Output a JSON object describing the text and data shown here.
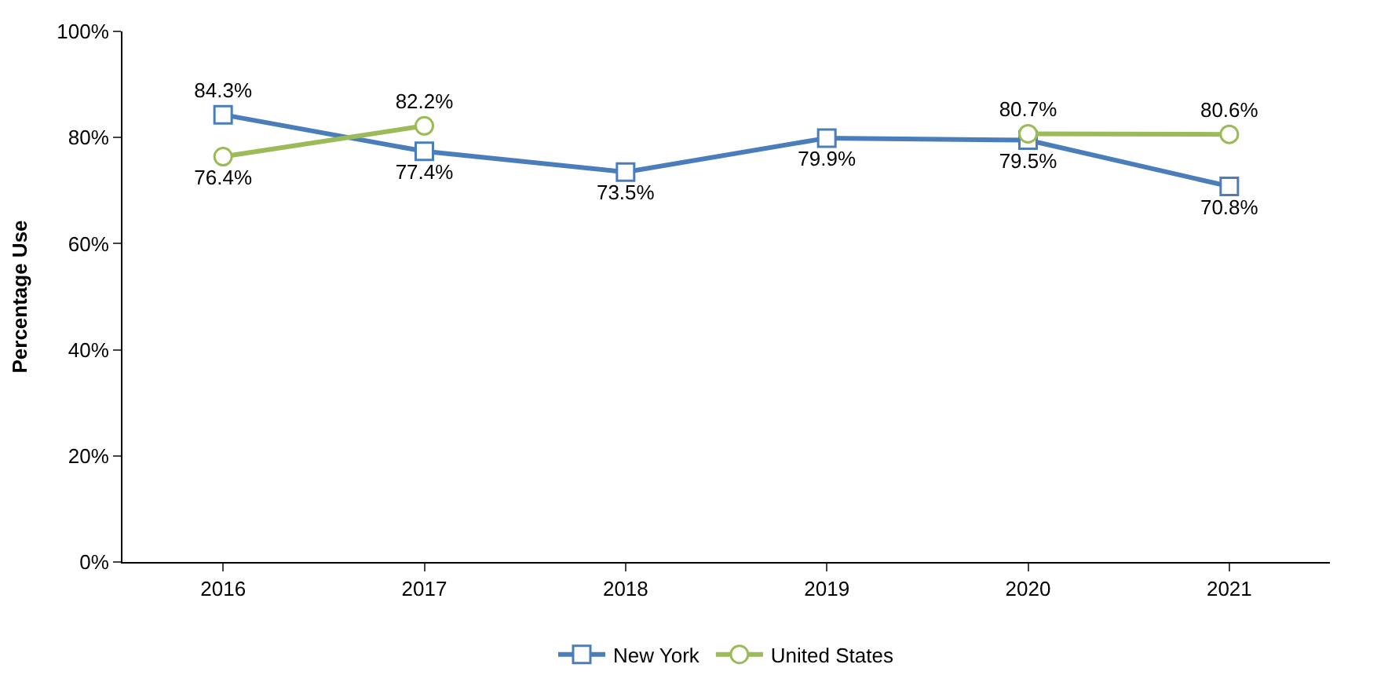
{
  "chart_data": {
    "type": "line",
    "ylabel": "Percentage Use",
    "categories": [
      "2016",
      "2017",
      "2018",
      "2019",
      "2020",
      "2021"
    ],
    "series": [
      {
        "name": "New York",
        "color": "#4a7ebb",
        "marker": "square",
        "values": [
          84.3,
          77.4,
          73.5,
          79.9,
          79.5,
          70.8
        ],
        "value_labels": [
          "84.3%",
          "77.4%",
          "73.5%",
          "79.9%",
          "79.5%",
          "70.8%"
        ]
      },
      {
        "name": "United States",
        "color": "#9bbb59",
        "marker": "circle",
        "values": [
          76.4,
          82.2,
          null,
          null,
          80.7,
          80.6
        ],
        "value_labels": [
          "76.4%",
          "82.2%",
          null,
          null,
          "80.7%",
          "80.6%"
        ]
      }
    ],
    "ylim": [
      0,
      100
    ],
    "yticks": [
      {
        "value": 0,
        "label": "0%"
      },
      {
        "value": 20,
        "label": "20%"
      },
      {
        "value": 40,
        "label": "40%"
      },
      {
        "value": 60,
        "label": "60%"
      },
      {
        "value": 80,
        "label": "80%"
      },
      {
        "value": 100,
        "label": "100%"
      }
    ],
    "legend": "bottom",
    "line_style": "solid"
  }
}
